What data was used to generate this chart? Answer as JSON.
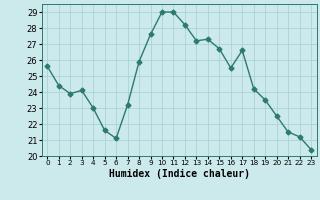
{
  "x": [
    0,
    1,
    2,
    3,
    4,
    5,
    6,
    7,
    8,
    9,
    10,
    11,
    12,
    13,
    14,
    15,
    16,
    17,
    18,
    19,
    20,
    21,
    22,
    23
  ],
  "y": [
    25.6,
    24.4,
    23.9,
    24.1,
    23.0,
    21.6,
    21.1,
    23.2,
    25.9,
    27.6,
    29.0,
    29.0,
    28.2,
    27.2,
    27.3,
    26.7,
    25.5,
    26.6,
    24.2,
    23.5,
    22.5,
    21.5,
    21.2,
    20.4
  ],
  "line_color": "#2d7a6e",
  "marker": "D",
  "marker_size": 2.5,
  "bg_color": "#cce9eb",
  "grid_color": "#aad3d6",
  "xlabel": "Humidex (Indice chaleur)",
  "ylim": [
    20,
    29.5
  ],
  "yticks": [
    20,
    21,
    22,
    23,
    24,
    25,
    26,
    27,
    28,
    29
  ],
  "xlim": [
    -0.5,
    23.5
  ],
  "xticks": [
    0,
    1,
    2,
    3,
    4,
    5,
    6,
    7,
    8,
    9,
    10,
    11,
    12,
    13,
    14,
    15,
    16,
    17,
    18,
    19,
    20,
    21,
    22,
    23
  ],
  "line_width": 1.0
}
